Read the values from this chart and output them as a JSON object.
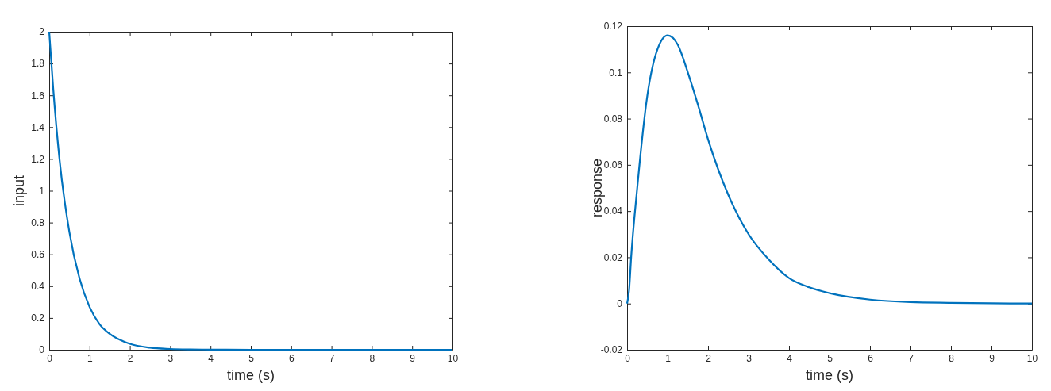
{
  "chart_data": [
    {
      "type": "line",
      "xlabel": "time (s)",
      "ylabel": "input",
      "xlim": [
        0,
        10
      ],
      "ylim": [
        0,
        2
      ],
      "xticks": [
        0,
        1,
        2,
        3,
        4,
        5,
        6,
        7,
        8,
        9,
        10
      ],
      "yticks": [
        0,
        0.2,
        0.4,
        0.6,
        0.8,
        1,
        1.2,
        1.4,
        1.6,
        1.8,
        2
      ],
      "series": [
        {
          "color": "#0072bd",
          "x": [
            0,
            0.1,
            0.25,
            0.5,
            0.75,
            1,
            1.25,
            1.5,
            2,
            2.5,
            3,
            3.5,
            4,
            5,
            6,
            7,
            8,
            9,
            10
          ],
          "values": [
            2,
            1.64,
            1.21,
            0.74,
            0.45,
            0.27,
            0.16,
            0.1,
            0.037,
            0.013,
            0.005,
            0.002,
            0.001,
            0,
            0,
            0,
            0,
            0,
            0
          ]
        }
      ]
    },
    {
      "type": "line",
      "xlabel": "time (s)",
      "ylabel": "response",
      "xlim": [
        0,
        10
      ],
      "ylim": [
        -0.02,
        0.12
      ],
      "xticks": [
        0,
        1,
        2,
        3,
        4,
        5,
        6,
        7,
        8,
        9,
        10
      ],
      "yticks": [
        -0.02,
        0,
        0.02,
        0.04,
        0.06,
        0.08,
        0.1,
        0.12
      ],
      "series": [
        {
          "color": "#0072bd",
          "x": [
            0,
            0.05,
            0.1,
            0.25,
            0.5,
            0.75,
            1,
            1.25,
            1.5,
            1.75,
            2,
            2.5,
            3,
            3.5,
            4,
            4.5,
            5,
            6,
            7,
            8,
            9,
            10
          ],
          "values": [
            0,
            0.006,
            0.02,
            0.05,
            0.09,
            0.11,
            0.116,
            0.112,
            0.1,
            0.086,
            0.071,
            0.047,
            0.03,
            0.019,
            0.011,
            0.007,
            0.0045,
            0.0017,
            0.0006,
            0.0003,
            0.0001,
            0
          ]
        }
      ]
    }
  ]
}
